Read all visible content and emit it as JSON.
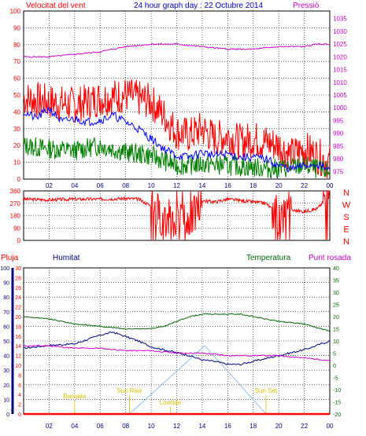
{
  "title": "24 hour graph day : 22 Octubre 2014",
  "colors": {
    "wind": "#ff0000",
    "wind_avg": "#0000ff",
    "wind_min": "#008000",
    "pressure": "#cc00cc",
    "direction": "#ff0000",
    "humidity": "#000080",
    "temperature": "#006600",
    "dewpoint": "#cc00cc",
    "rain": "#ff0000",
    "daylight": "#a0c8f0",
    "sun_labels": "#d4c000",
    "grid": "#000000",
    "plot_bg": "#ffffff"
  },
  "chart_data": [
    {
      "id": "wind_pressure",
      "type": "line",
      "labels": {
        "left": "Velocitat del vent",
        "right": "Pressió"
      },
      "x_ticks": [
        "02",
        "04",
        "06",
        "08",
        "10",
        "12",
        "14",
        "16",
        "18",
        "20",
        "22",
        "00"
      ],
      "left_axis": {
        "range": [
          0,
          100
        ],
        "ticks": [
          0,
          10,
          20,
          30,
          40,
          50,
          60,
          70,
          80,
          90,
          100
        ]
      },
      "right_axis": {
        "range": [
          972,
          1038
        ],
        "ticks": [
          975,
          980,
          985,
          990,
          995,
          1000,
          1005,
          1010,
          1015,
          1020,
          1025,
          1030,
          1035
        ]
      },
      "series": [
        {
          "key": "gust",
          "axis": "left",
          "x": [
            0,
            2,
            4,
            6,
            8,
            10,
            11,
            12,
            13,
            14,
            15,
            16,
            17,
            18,
            19,
            20,
            21,
            22,
            23,
            24
          ],
          "y": [
            48,
            46,
            44,
            48,
            50,
            46,
            38,
            28,
            26,
            30,
            24,
            26,
            22,
            24,
            22,
            20,
            14,
            18,
            14,
            10
          ]
        },
        {
          "key": "average",
          "axis": "left",
          "x": [
            0,
            1,
            2,
            3,
            4,
            5,
            6,
            7,
            8,
            9,
            10,
            11,
            12,
            13,
            14,
            15,
            16,
            17,
            18,
            19,
            20,
            21,
            22,
            23,
            24
          ],
          "y": [
            40,
            36,
            42,
            34,
            36,
            34,
            35,
            38,
            34,
            30,
            24,
            18,
            14,
            13,
            16,
            14,
            15,
            13,
            13,
            12,
            8,
            6,
            8,
            9,
            5
          ]
        },
        {
          "key": "minimum",
          "axis": "left",
          "x": [
            0,
            2,
            4,
            6,
            8,
            10,
            12,
            14,
            16,
            18,
            20,
            22,
            24
          ],
          "y": [
            20,
            18,
            17,
            20,
            16,
            14,
            8,
            9,
            8,
            7,
            6,
            8,
            4
          ]
        },
        {
          "key": "pressure",
          "axis": "right",
          "x": [
            0,
            2,
            4,
            6,
            8,
            10,
            12,
            14,
            16,
            18,
            20,
            22,
            23,
            24
          ],
          "y": [
            1020,
            1020,
            1021,
            1022,
            1024,
            1025,
            1025,
            1024,
            1023,
            1023,
            1024,
            1024,
            1025,
            1025
          ]
        }
      ]
    },
    {
      "id": "wind_direction",
      "type": "line",
      "left_ticks": [
        "360",
        "270",
        "180",
        "90",
        "0"
      ],
      "right_labels": [
        "N",
        "W",
        "S",
        "E",
        "N"
      ],
      "range": [
        0,
        360
      ],
      "series": [
        {
          "key": "direction",
          "x": [
            0,
            2,
            4,
            6,
            8,
            9,
            10,
            11,
            12,
            13,
            14,
            15,
            16,
            17,
            18,
            19,
            20,
            21,
            22,
            23,
            24
          ],
          "y": [
            300,
            295,
            300,
            300,
            305,
            300,
            250,
            170,
            150,
            140,
            290,
            280,
            300,
            290,
            280,
            270,
            180,
            220,
            210,
            230,
            330
          ]
        }
      ]
    },
    {
      "id": "rain_hum_temp",
      "type": "line",
      "labels": {
        "rain": "Pluja",
        "humidity": "Humitat",
        "temperature": "Temperatura",
        "dewpoint": "Punt rosada"
      },
      "humidity_axis": {
        "range": [
          0,
          100
        ],
        "ticks": [
          0,
          10,
          20,
          30,
          40,
          50,
          60,
          70,
          80,
          90,
          100
        ]
      },
      "rain_axis": {
        "range": [
          0,
          30
        ],
        "ticks": [
          0,
          2,
          4,
          6,
          8,
          10,
          12,
          14,
          16,
          18,
          20,
          22,
          24,
          26,
          28,
          30
        ]
      },
      "temperature_axis": {
        "range": [
          -20,
          40
        ],
        "ticks": [
          -20,
          -15,
          -10,
          -5,
          0,
          5,
          10,
          15,
          20,
          25,
          30,
          35,
          40
        ]
      },
      "series": [
        {
          "key": "temperature",
          "x": [
            0,
            2,
            4,
            6,
            8,
            10,
            11,
            12,
            13,
            14,
            15,
            16,
            17,
            18,
            19,
            20,
            22,
            24
          ],
          "y": [
            20,
            19,
            17,
            16,
            15,
            15,
            16,
            18,
            20,
            21,
            21,
            21,
            21,
            20,
            19,
            18,
            17,
            14
          ]
        },
        {
          "key": "humidity",
          "x": [
            0,
            2,
            4,
            6,
            7,
            8,
            9,
            10,
            11,
            12,
            13,
            14,
            15,
            16,
            17,
            18,
            19,
            20,
            22,
            24
          ],
          "y": [
            45,
            47,
            48,
            54,
            56,
            53,
            50,
            46,
            44,
            42,
            40,
            37,
            36,
            34,
            34,
            36,
            38,
            40,
            44,
            50
          ]
        },
        {
          "key": "dewpoint",
          "x": [
            0,
            2,
            4,
            6,
            8,
            10,
            12,
            14,
            16,
            18,
            20,
            22,
            24
          ],
          "y": [
            8,
            8,
            7,
            7,
            6,
            6,
            5,
            5,
            4,
            4,
            4,
            3,
            2
          ]
        },
        {
          "key": "rain",
          "x": [
            8,
            19
          ],
          "y": [
            0,
            0
          ]
        }
      ],
      "sun_annotations": [
        {
          "label": "Baixada",
          "x": 4,
          "stack": 0
        },
        {
          "label": "Sun Rise",
          "x": 8.3,
          "stack": 1
        },
        {
          "label": "Lowtide",
          "x": 11.5,
          "stack": 2
        },
        {
          "label": "Sun Set",
          "x": 19,
          "stack": 1
        }
      ],
      "daylight": {
        "start": 8.3,
        "end": 19,
        "peak": 14.2
      }
    }
  ]
}
